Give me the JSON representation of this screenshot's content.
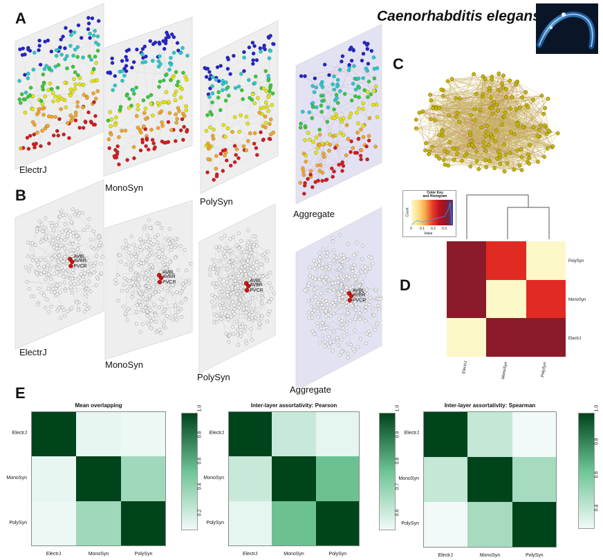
{
  "figure": {
    "species_title": "Caenorhabditis elegans",
    "panels": {
      "a": "A",
      "b": "B",
      "c": "C",
      "d": "D",
      "e": "E"
    }
  },
  "panel_a": {
    "layers": [
      "ElectrJ",
      "MonoSyn",
      "PolySyn",
      "Aggregate"
    ],
    "colors": {
      "red": "#d7191c",
      "orange": "#f5a623",
      "yellow": "#e6e600",
      "green": "#33cc33",
      "cyan": "#22cccc",
      "blue": "#2222cc",
      "plane": "#eeeeee",
      "plane_agg": "#e2e2f3"
    }
  },
  "panel_b": {
    "layers": [
      "ElectrJ",
      "MonoSyn",
      "PolySyn",
      "Aggregate"
    ],
    "highlight_labels": [
      "AVBL",
      "AVBR",
      "PVCR"
    ],
    "colors": {
      "node": "#f2f2f2",
      "node_stroke": "#777777",
      "highlight": "#cc1111"
    }
  },
  "panel_c": {
    "colors": {
      "node": "#c8b400",
      "edge": "#b39a2a",
      "edge_red": "#b2463a"
    }
  },
  "panel_d": {
    "color_key_title": "Color Key\nand Histogram",
    "color_key_xlabel": "Value",
    "color_key_ylabel": "Count",
    "color_key_ticks": [
      "0",
      "0.1",
      "0.2",
      "0.3"
    ],
    "rows": [
      "PolySyn",
      "MonoSyn",
      "ElectrJ"
    ],
    "cols": [
      "ElectrJ",
      "MonoSyn",
      "PolySyn"
    ],
    "cells": [
      [
        "#8b1a2b",
        "#e12a22",
        "#fdf8c8"
      ],
      [
        "#8b1a2b",
        "#fdf8c8",
        "#e12a22"
      ],
      [
        "#fdf8c8",
        "#8b1a2b",
        "#8b1a2b"
      ]
    ]
  },
  "chart_data": [
    {
      "type": "heatmap",
      "title": "Mean overlapping",
      "rows": [
        "ElectrJ",
        "MonoSyn",
        "PolySyn"
      ],
      "cols": [
        "ElectrJ",
        "MonoSyn",
        "PolySyn"
      ],
      "values": [
        [
          1.0,
          0.13,
          0.12
        ],
        [
          0.13,
          1.0,
          0.38
        ],
        [
          0.12,
          0.38,
          1.0
        ]
      ],
      "colorbar_ticks": [
        1.0,
        0.8,
        0.6,
        0.4,
        0.2
      ],
      "colorbar_range": [
        0.1,
        1.0
      ]
    },
    {
      "type": "heatmap",
      "title": "Inter-layer assortativity: Pearson",
      "rows": [
        "ElectrJ",
        "MonoSyn",
        "PolySyn"
      ],
      "cols": [
        "ElectrJ",
        "MonoSyn",
        "PolySyn"
      ],
      "values": [
        [
          1.0,
          0.62,
          0.57
        ],
        [
          0.62,
          1.0,
          0.78
        ],
        [
          0.57,
          0.78,
          1.0
        ]
      ],
      "colorbar_ticks": [
        1.0,
        0.9,
        0.8,
        0.7,
        0.6
      ],
      "colorbar_range": [
        0.55,
        1.0
      ]
    },
    {
      "type": "heatmap",
      "title": "Inter-layer assortativity: Spearman",
      "rows": [
        "ElectrJ",
        "MonoSyn",
        "PolySyn"
      ],
      "cols": [
        "ElectrJ",
        "MonoSyn",
        "PolySyn"
      ],
      "values": [
        [
          1.0,
          0.42,
          0.3
        ],
        [
          0.42,
          1.0,
          0.5
        ],
        [
          0.3,
          0.5,
          1.0
        ]
      ],
      "colorbar_ticks": [
        1.0,
        0.8,
        0.6,
        0.4
      ],
      "colorbar_range": [
        0.3,
        1.0
      ]
    }
  ]
}
